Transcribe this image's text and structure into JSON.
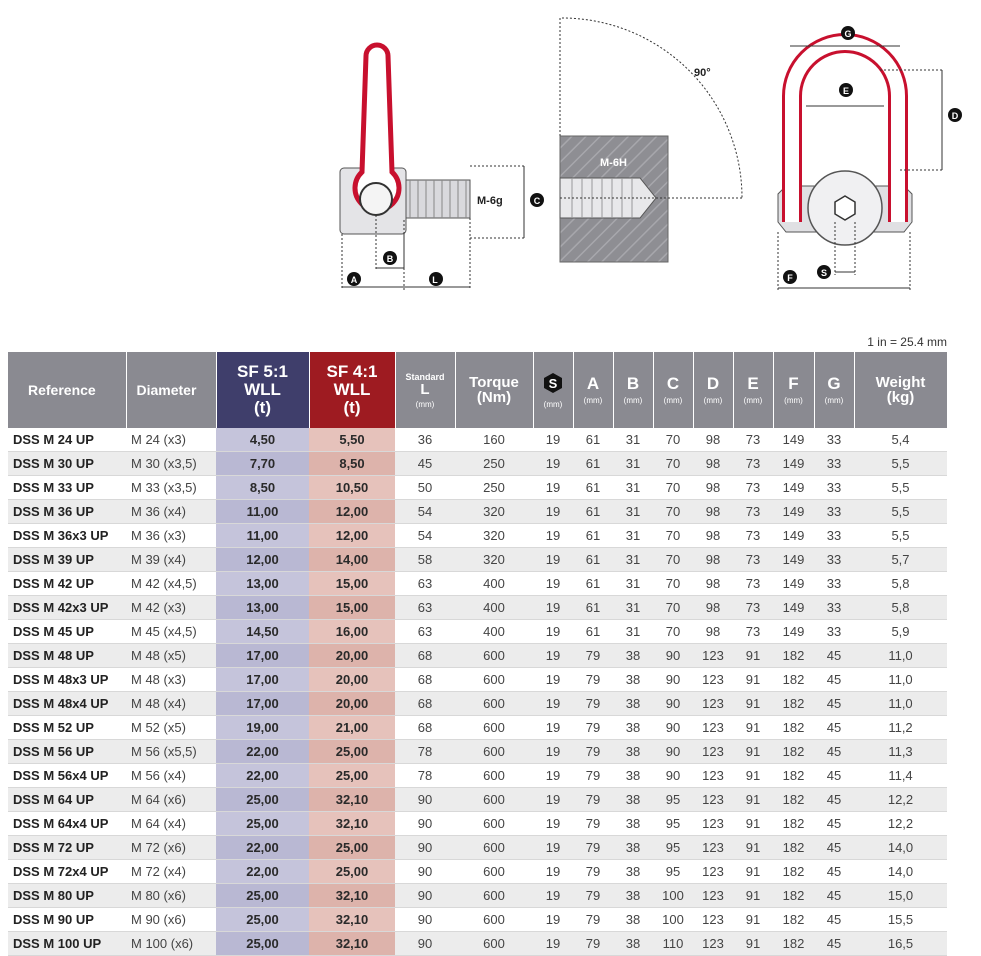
{
  "diagram": {
    "labels": {
      "m6g": "M-6g",
      "m6h": "M-6H",
      "angle": "90°",
      "a": "A",
      "b": "B",
      "c": "C",
      "d": "D",
      "e": "E",
      "f": "F",
      "g": "G",
      "l1": "L",
      "s": "S"
    },
    "colors": {
      "shackle": "#c8102e",
      "steel": "#cfcfd3",
      "block": "#8e8e93"
    }
  },
  "conversion_note": "1 in = 25.4 mm",
  "table": {
    "headers": {
      "reference": "Reference",
      "diameter": "Diameter",
      "sf5": {
        "line1": "SF 5:1",
        "line2": "WLL",
        "line3": "(t)"
      },
      "sf4": {
        "line1": "SF 4:1",
        "line2": "WLL",
        "line3": "(t)"
      },
      "standard": {
        "line1": "Standard",
        "line2": "L",
        "unit": "(mm)"
      },
      "torque": {
        "line1": "Torque",
        "line2": "(Nm)"
      },
      "s": {
        "letter": "S",
        "unit": "(mm)"
      },
      "a": {
        "letter": "A",
        "unit": "(mm)"
      },
      "b": {
        "letter": "B",
        "unit": "(mm)"
      },
      "c": {
        "letter": "C",
        "unit": "(mm)"
      },
      "d": {
        "letter": "D",
        "unit": "(mm)"
      },
      "e": {
        "letter": "E",
        "unit": "(mm)"
      },
      "f": {
        "letter": "F",
        "unit": "(mm)"
      },
      "g": {
        "letter": "G",
        "unit": "(mm)"
      },
      "weight": {
        "line1": "Weight",
        "line2": "(kg)"
      }
    },
    "rows": [
      [
        "DSS M 24 UP",
        "M 24 (x3)",
        "4,50",
        "5,50",
        "36",
        "160",
        "19",
        "61",
        "31",
        "70",
        "98",
        "73",
        "149",
        "33",
        "5,4"
      ],
      [
        "DSS M 30 UP",
        "M 30 (x3,5)",
        "7,70",
        "8,50",
        "45",
        "250",
        "19",
        "61",
        "31",
        "70",
        "98",
        "73",
        "149",
        "33",
        "5,5"
      ],
      [
        "DSS M 33 UP",
        "M 33 (x3,5)",
        "8,50",
        "10,50",
        "50",
        "250",
        "19",
        "61",
        "31",
        "70",
        "98",
        "73",
        "149",
        "33",
        "5,5"
      ],
      [
        "DSS M 36 UP",
        "M 36 (x4)",
        "11,00",
        "12,00",
        "54",
        "320",
        "19",
        "61",
        "31",
        "70",
        "98",
        "73",
        "149",
        "33",
        "5,5"
      ],
      [
        "DSS M 36x3 UP",
        "M 36 (x3)",
        "11,00",
        "12,00",
        "54",
        "320",
        "19",
        "61",
        "31",
        "70",
        "98",
        "73",
        "149",
        "33",
        "5,5"
      ],
      [
        "DSS M 39 UP",
        "M 39 (x4)",
        "12,00",
        "14,00",
        "58",
        "320",
        "19",
        "61",
        "31",
        "70",
        "98",
        "73",
        "149",
        "33",
        "5,7"
      ],
      [
        "DSS M 42 UP",
        "M 42 (x4,5)",
        "13,00",
        "15,00",
        "63",
        "400",
        "19",
        "61",
        "31",
        "70",
        "98",
        "73",
        "149",
        "33",
        "5,8"
      ],
      [
        "DSS M 42x3 UP",
        "M 42 (x3)",
        "13,00",
        "15,00",
        "63",
        "400",
        "19",
        "61",
        "31",
        "70",
        "98",
        "73",
        "149",
        "33",
        "5,8"
      ],
      [
        "DSS M 45 UP",
        "M 45 (x4,5)",
        "14,50",
        "16,00",
        "63",
        "400",
        "19",
        "61",
        "31",
        "70",
        "98",
        "73",
        "149",
        "33",
        "5,9"
      ],
      [
        "DSS M 48 UP",
        "M 48 (x5)",
        "17,00",
        "20,00",
        "68",
        "600",
        "19",
        "79",
        "38",
        "90",
        "123",
        "91",
        "182",
        "45",
        "11,0"
      ],
      [
        "DSS M 48x3 UP",
        "M 48 (x3)",
        "17,00",
        "20,00",
        "68",
        "600",
        "19",
        "79",
        "38",
        "90",
        "123",
        "91",
        "182",
        "45",
        "11,0"
      ],
      [
        "DSS M 48x4 UP",
        "M 48 (x4)",
        "17,00",
        "20,00",
        "68",
        "600",
        "19",
        "79",
        "38",
        "90",
        "123",
        "91",
        "182",
        "45",
        "11,0"
      ],
      [
        "DSS M 52 UP",
        "M 52 (x5)",
        "19,00",
        "21,00",
        "68",
        "600",
        "19",
        "79",
        "38",
        "90",
        "123",
        "91",
        "182",
        "45",
        "11,2"
      ],
      [
        "DSS M 56 UP",
        "M 56 (x5,5)",
        "22,00",
        "25,00",
        "78",
        "600",
        "19",
        "79",
        "38",
        "90",
        "123",
        "91",
        "182",
        "45",
        "11,3"
      ],
      [
        "DSS M 56x4 UP",
        "M 56 (x4)",
        "22,00",
        "25,00",
        "78",
        "600",
        "19",
        "79",
        "38",
        "90",
        "123",
        "91",
        "182",
        "45",
        "11,4"
      ],
      [
        "DSS M 64 UP",
        "M 64 (x6)",
        "25,00",
        "32,10",
        "90",
        "600",
        "19",
        "79",
        "38",
        "95",
        "123",
        "91",
        "182",
        "45",
        "12,2"
      ],
      [
        "DSS M 64x4 UP",
        "M 64 (x4)",
        "25,00",
        "32,10",
        "90",
        "600",
        "19",
        "79",
        "38",
        "95",
        "123",
        "91",
        "182",
        "45",
        "12,2"
      ],
      [
        "DSS M 72 UP",
        "M 72 (x6)",
        "22,00",
        "25,00",
        "90",
        "600",
        "19",
        "79",
        "38",
        "95",
        "123",
        "91",
        "182",
        "45",
        "14,0"
      ],
      [
        "DSS M 72x4 UP",
        "M 72 (x4)",
        "22,00",
        "25,00",
        "90",
        "600",
        "19",
        "79",
        "38",
        "95",
        "123",
        "91",
        "182",
        "45",
        "14,0"
      ],
      [
        "DSS M 80 UP",
        "M 80 (x6)",
        "25,00",
        "32,10",
        "90",
        "600",
        "19",
        "79",
        "38",
        "100",
        "123",
        "91",
        "182",
        "45",
        "15,0"
      ],
      [
        "DSS M 90 UP",
        "M 90 (x6)",
        "25,00",
        "32,10",
        "90",
        "600",
        "19",
        "79",
        "38",
        "100",
        "123",
        "91",
        "182",
        "45",
        "15,5"
      ],
      [
        "DSS M 100 UP",
        "M 100 (x6)",
        "25,00",
        "32,10",
        "90",
        "600",
        "19",
        "79",
        "38",
        "110",
        "123",
        "91",
        "182",
        "45",
        "16,5"
      ]
    ]
  }
}
